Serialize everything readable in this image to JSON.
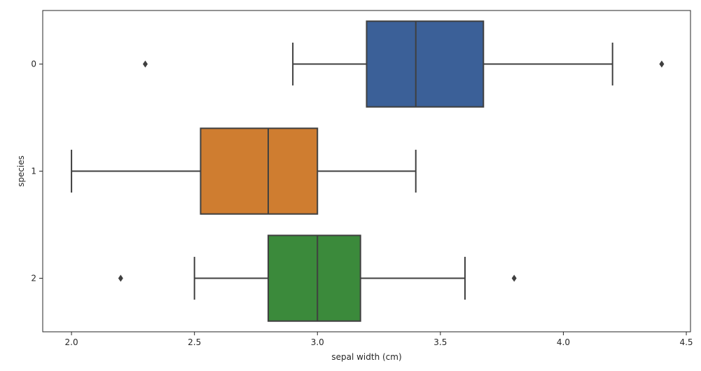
{
  "chart_data": {
    "type": "boxplot",
    "orientation": "horizontal",
    "xlabel": "sepal width (cm)",
    "ylabel": "species",
    "xlim": [
      1.883,
      4.517
    ],
    "x_ticks": [
      2.0,
      2.5,
      3.0,
      3.5,
      4.0,
      4.5
    ],
    "x_tick_labels": [
      "2.0",
      "2.5",
      "3.0",
      "3.5",
      "4.0",
      "4.5"
    ],
    "categories": [
      "0",
      "1",
      "2"
    ],
    "grid": false,
    "legend": "none",
    "series": [
      {
        "category": "0",
        "whisker_low": 2.9,
        "q1": 3.2,
        "median": 3.4,
        "q3": 3.675,
        "whisker_high": 4.2,
        "outliers": [
          2.3,
          4.4
        ],
        "color": "#3b6098"
      },
      {
        "category": "1",
        "whisker_low": 2.0,
        "q1": 2.525,
        "median": 2.8,
        "q3": 3.0,
        "whisker_high": 3.4,
        "outliers": [],
        "color": "#cf7d30"
      },
      {
        "category": "2",
        "whisker_low": 2.5,
        "q1": 2.8,
        "median": 3.0,
        "q3": 3.175,
        "whisker_high": 3.6,
        "outliers": [
          2.2,
          3.8
        ],
        "color": "#3b8a3b"
      }
    ],
    "line_color": "#3f3f3f"
  }
}
